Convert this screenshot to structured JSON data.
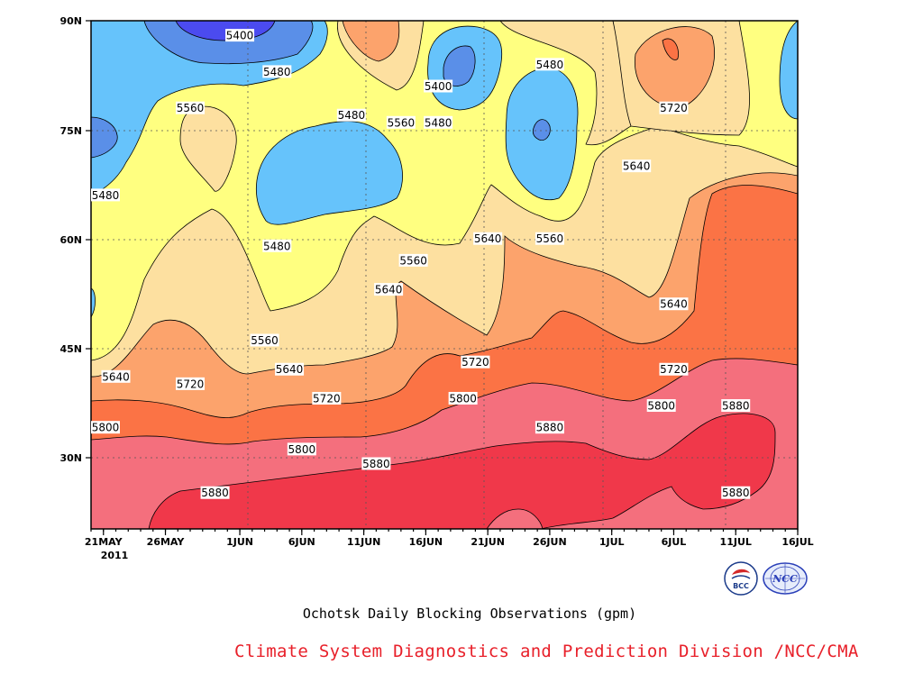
{
  "chart_data": {
    "type": "contour",
    "title": "Ochotsk Daily Blocking Observations (gpm)",
    "x_ticks": [
      "21MAY",
      "26MAY",
      "1JUN",
      "6JUN",
      "11JUN",
      "16JUN",
      "21JUN",
      "26JUN",
      "1JUL",
      "6JUL",
      "11JUL",
      "16JUL"
    ],
    "x_year": "2011",
    "y_ticks": [
      "30N",
      "45N",
      "60N",
      "75N",
      "90N"
    ],
    "x_range": [
      "2011-05-20",
      "2011-07-16"
    ],
    "y_range": [
      20,
      90
    ],
    "levels": [
      5400,
      5480,
      5560,
      5640,
      5720,
      5800,
      5880
    ],
    "level_colors": {
      "lt5400": "#4b4bef",
      "5400_5480": "#5a8fe8",
      "5480_5560": "#66c3fb",
      "5560_5640": "#ffff80",
      "5640_5720": "#fde0a0",
      "5720_5800": "#fca36c",
      "5800_5880": "#fb7345",
      "gt5880": "#f46f7d",
      "gt5960": "#f0384a"
    },
    "contour_labels": [
      {
        "text": "5400",
        "date": "2011-06-01",
        "lat": 88
      },
      {
        "text": "5480",
        "date": "2011-06-04",
        "lat": 83
      },
      {
        "text": "5560",
        "date": "2011-05-28",
        "lat": 78
      },
      {
        "text": "5480",
        "date": "2011-06-10",
        "lat": 77
      },
      {
        "text": "5560",
        "date": "2011-06-14",
        "lat": 76
      },
      {
        "text": "5400",
        "date": "2011-06-17",
        "lat": 81
      },
      {
        "text": "5480",
        "date": "2011-06-17",
        "lat": 76
      },
      {
        "text": "5480",
        "date": "2011-06-26",
        "lat": 84
      },
      {
        "text": "5720",
        "date": "2011-07-06",
        "lat": 78
      },
      {
        "text": "5640",
        "date": "2011-07-03",
        "lat": 70
      },
      {
        "text": "5480",
        "date": "2011-05-20",
        "lat": 66
      },
      {
        "text": "5480",
        "date": "2011-06-04",
        "lat": 59
      },
      {
        "text": "5640",
        "date": "2011-06-21",
        "lat": 60
      },
      {
        "text": "5560",
        "date": "2011-06-26",
        "lat": 60
      },
      {
        "text": "5560",
        "date": "2011-06-15",
        "lat": 57
      },
      {
        "text": "5640",
        "date": "2011-06-13",
        "lat": 53
      },
      {
        "text": "5640",
        "date": "2011-07-06",
        "lat": 51
      },
      {
        "text": "5560",
        "date": "2011-06-03",
        "lat": 46
      },
      {
        "text": "5640",
        "date": "2011-05-22",
        "lat": 41
      },
      {
        "text": "5720",
        "date": "2011-05-28",
        "lat": 40
      },
      {
        "text": "5640",
        "date": "2011-06-05",
        "lat": 42
      },
      {
        "text": "5720",
        "date": "2011-06-20",
        "lat": 43
      },
      {
        "text": "5720",
        "date": "2011-07-06",
        "lat": 42
      },
      {
        "text": "5720",
        "date": "2011-06-08",
        "lat": 38
      },
      {
        "text": "5800",
        "date": "2011-06-19",
        "lat": 38
      },
      {
        "text": "5800",
        "date": "2011-07-05",
        "lat": 37
      },
      {
        "text": "5880",
        "date": "2011-07-11",
        "lat": 37
      },
      {
        "text": "5800",
        "date": "2011-05-20",
        "lat": 34
      },
      {
        "text": "5880",
        "date": "2011-06-26",
        "lat": 34
      },
      {
        "text": "5800",
        "date": "2011-06-06",
        "lat": 31
      },
      {
        "text": "5880",
        "date": "2011-06-12",
        "lat": 29
      },
      {
        "text": "5880",
        "date": "2011-05-30",
        "lat": 25
      },
      {
        "text": "5880",
        "date": "2011-07-11",
        "lat": 25
      }
    ]
  },
  "footer": {
    "title": "Ochotsk Daily Blocking Observations (gpm)",
    "credit": "Climate System Diagnostics and Prediction Division /NCC/CMA"
  },
  "logos": {
    "left_text": "BCC",
    "right_text": "NCC"
  }
}
